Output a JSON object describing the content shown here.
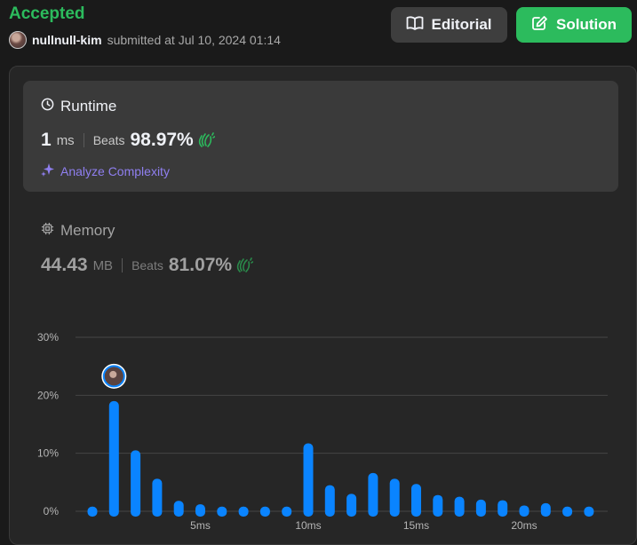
{
  "header": {
    "status": "Accepted",
    "username": "nullnull-kim",
    "submitted_text": "submitted at Jul 10, 2024 01:14"
  },
  "buttons": {
    "editorial": "Editorial",
    "solution": "Solution"
  },
  "runtime": {
    "title": "Runtime",
    "value": "1",
    "unit": "ms",
    "beats_label": "Beats",
    "beats": "98.97%",
    "analyze": "Analyze Complexity"
  },
  "memory": {
    "title": "Memory",
    "value": "44.43",
    "unit": "MB",
    "beats_label": "Beats",
    "beats": "81.07%"
  },
  "colors": {
    "accepted": "#2cbb5d",
    "bar": "#0a84ff",
    "analyze": "#8f7ff0"
  },
  "chart_data": {
    "type": "bar",
    "title": "",
    "xlabel": "",
    "ylabel": "",
    "ylim": [
      0,
      30
    ],
    "yticks": [
      "0%",
      "10%",
      "20%",
      "30%"
    ],
    "xticks": [
      {
        "label": "5ms",
        "x": 5
      },
      {
        "label": "10ms",
        "x": 10
      },
      {
        "label": "15ms",
        "x": 15
      },
      {
        "label": "20ms",
        "x": 20
      }
    ],
    "x": [
      0,
      1,
      2,
      3,
      4,
      5,
      6,
      7,
      8,
      9,
      10,
      11,
      12,
      13,
      14,
      15,
      16,
      17,
      18,
      19,
      20,
      21,
      22,
      23
    ],
    "values": [
      0.8,
      19,
      10.5,
      5.6,
      1.8,
      1.2,
      0.8,
      0.8,
      0.8,
      0.8,
      11.7,
      4.5,
      3,
      6.6,
      5.6,
      4.7,
      2.8,
      2.5,
      2,
      1.9,
      1,
      1.4,
      0.8,
      0.8
    ],
    "highlight_x": 1,
    "grid": true
  }
}
